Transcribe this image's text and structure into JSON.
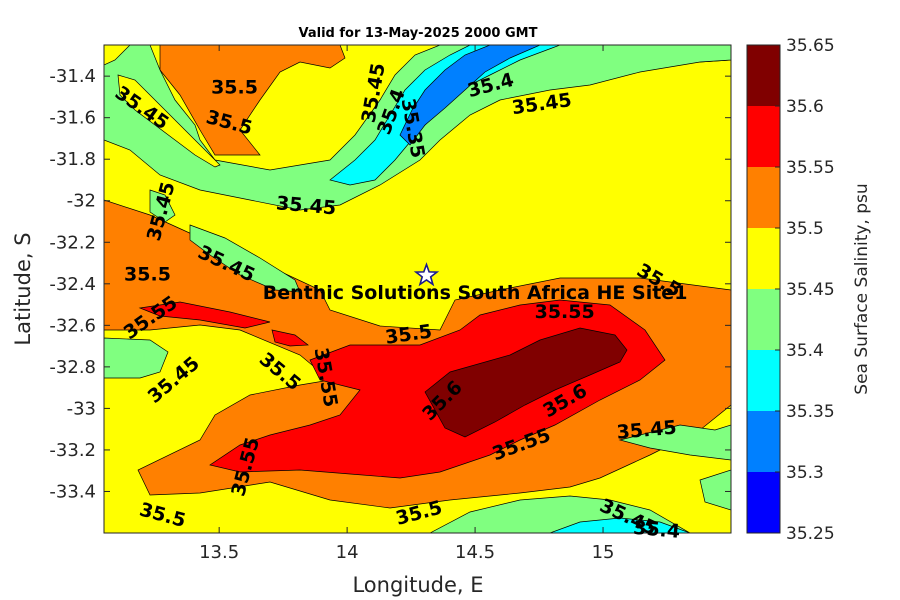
{
  "chart_data": {
    "type": "heatmap",
    "subtype": "filled-contour",
    "title": "Valid for 13-May-2025 2000 GMT",
    "xlabel": "Longitude, E",
    "ylabel": "Latitude, S",
    "xlim": [
      13.05,
      15.5
    ],
    "ylim": [
      -33.6,
      -31.25
    ],
    "x_ticks": [
      13.5,
      14,
      14.5,
      15
    ],
    "x_tick_labels": [
      "13.5",
      "14",
      "14.5",
      "15"
    ],
    "y_ticks": [
      -31.4,
      -31.6,
      -31.8,
      -32,
      -32.2,
      -32.4,
      -32.6,
      -32.8,
      -33,
      -33.2,
      -33.4
    ],
    "y_tick_labels": [
      "-31.4",
      "-31.6",
      "-31.8",
      "-32",
      "-32.2",
      "-32.4",
      "-32.6",
      "-32.8",
      "-33",
      "-33.2",
      "-33.4"
    ],
    "grid": false,
    "colorbar": {
      "label": "Sea Surface Salinity, psu",
      "levels": [
        35.25,
        35.3,
        35.35,
        35.4,
        35.45,
        35.5,
        35.55,
        35.6,
        35.65
      ],
      "level_labels": [
        "35.25",
        "35.3",
        "35.35",
        "35.4",
        "35.45",
        "35.5",
        "35.55",
        "35.6",
        "35.65"
      ],
      "colors": [
        "#0000ff",
        "#0080ff",
        "#00ffff",
        "#80ff80",
        "#ffff00",
        "#ff8000",
        "#ff0000",
        "#800000"
      ]
    },
    "contour_labels": [
      {
        "text": "35.5",
        "lon": 13.56,
        "lat": -31.45,
        "angle": 0
      },
      {
        "text": "35.5",
        "lon": 13.54,
        "lat": -31.62,
        "angle": 15
      },
      {
        "text": "35.45",
        "lon": 13.2,
        "lat": -31.55,
        "angle": 35
      },
      {
        "text": "35.45",
        "lon": 14.1,
        "lat": -31.48,
        "angle": -80
      },
      {
        "text": "35.4",
        "lon": 14.17,
        "lat": -31.57,
        "angle": -70
      },
      {
        "text": "35.35",
        "lon": 14.26,
        "lat": -31.65,
        "angle": 80
      },
      {
        "text": "35.4",
        "lon": 14.56,
        "lat": -31.44,
        "angle": -15
      },
      {
        "text": "35.45",
        "lon": 14.76,
        "lat": -31.53,
        "angle": -8
      },
      {
        "text": "35.45",
        "lon": 13.27,
        "lat": -32.05,
        "angle": -75
      },
      {
        "text": "35.45",
        "lon": 13.84,
        "lat": -32.02,
        "angle": 5
      },
      {
        "text": "35.45",
        "lon": 13.53,
        "lat": -32.3,
        "angle": 25
      },
      {
        "text": "35.5",
        "lon": 13.22,
        "lat": -32.35,
        "angle": 0
      },
      {
        "text": "35.55",
        "lon": 13.23,
        "lat": -32.56,
        "angle": -35
      },
      {
        "text": "35.5",
        "lon": 15.22,
        "lat": -32.38,
        "angle": 30
      },
      {
        "text": "35.55",
        "lon": 14.85,
        "lat": -32.53,
        "angle": 0
      },
      {
        "text": "35.5",
        "lon": 14.24,
        "lat": -32.64,
        "angle": -8
      },
      {
        "text": "35.45",
        "lon": 13.32,
        "lat": -32.86,
        "angle": -40
      },
      {
        "text": "35.5",
        "lon": 13.74,
        "lat": -32.82,
        "angle": 40
      },
      {
        "text": "35.55",
        "lon": 13.92,
        "lat": -32.85,
        "angle": 80
      },
      {
        "text": "35.6",
        "lon": 14.37,
        "lat": -32.96,
        "angle": -45
      },
      {
        "text": "35.6",
        "lon": 14.85,
        "lat": -32.96,
        "angle": -30
      },
      {
        "text": "35.55",
        "lon": 13.6,
        "lat": -33.28,
        "angle": -75
      },
      {
        "text": "35.55",
        "lon": 14.68,
        "lat": -33.17,
        "angle": -20
      },
      {
        "text": "35.45",
        "lon": 15.17,
        "lat": -33.1,
        "angle": -5
      },
      {
        "text": "35.5",
        "lon": 13.28,
        "lat": -33.51,
        "angle": 15
      },
      {
        "text": "35.5",
        "lon": 14.28,
        "lat": -33.5,
        "angle": -15
      },
      {
        "text": "35.45",
        "lon": 15.1,
        "lat": -33.52,
        "angle": 25
      },
      {
        "text": "35.4",
        "lon": 15.21,
        "lat": -33.58,
        "angle": 5
      }
    ],
    "annotation": {
      "text": "Benthic Solutions South Africa HE Site1",
      "lon": 14.5,
      "lat": -32.44
    },
    "site_marker": {
      "symbol": "star",
      "lon": 14.31,
      "lat": -32.36
    }
  }
}
